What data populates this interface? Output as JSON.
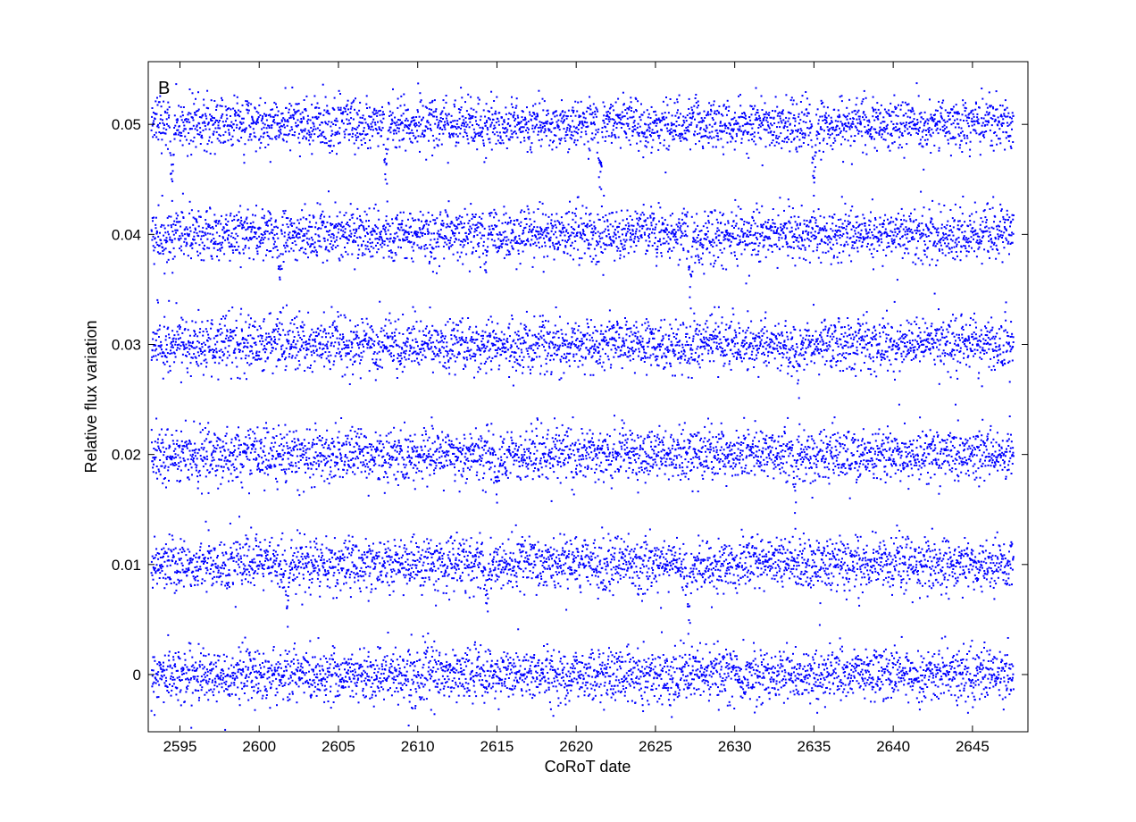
{
  "chart_data": {
    "type": "scatter",
    "title": "",
    "panel_label": "B",
    "xlabel": "CoRoT date",
    "ylabel": "Relative flux variation",
    "xlim": [
      2593,
      2648.5
    ],
    "ylim": [
      -0.0052,
      0.0557
    ],
    "xticks": [
      2595,
      2600,
      2605,
      2610,
      2615,
      2620,
      2625,
      2630,
      2635,
      2640,
      2645
    ],
    "yticks": [
      0,
      0.01,
      0.02,
      0.03,
      0.04,
      0.05
    ],
    "ytick_labels": [
      "0",
      "0.01",
      "0.02",
      "0.03",
      "0.04",
      "0.05"
    ],
    "marker": "dot",
    "marker_color": "#0000ff",
    "grid": false,
    "x_range_data": [
      2593.2,
      2647.6
    ],
    "series": [
      {
        "offset": 0,
        "noise_sigma": 0.0012,
        "transits": []
      },
      {
        "offset": 0.01,
        "noise_sigma": 0.0012,
        "transits": [
          {
            "t": 2601.8,
            "depth": 0.0035
          },
          {
            "t": 2614.4,
            "depth": 0.0035
          },
          {
            "t": 2627.1,
            "depth": 0.0045
          }
        ]
      },
      {
        "offset": 0.02,
        "noise_sigma": 0.0012,
        "transits": [
          {
            "t": 2615.0,
            "depth": 0.0035
          },
          {
            "t": 2633.8,
            "depth": 0.003
          }
        ]
      },
      {
        "offset": 0.03,
        "noise_sigma": 0.0012,
        "transits": [
          {
            "t": 2634.0,
            "depth": 0.003
          }
        ]
      },
      {
        "offset": 0.04,
        "noise_sigma": 0.0012,
        "transits": [
          {
            "t": 2601.3,
            "depth": 0.003
          },
          {
            "t": 2614.3,
            "depth": 0.003
          },
          {
            "t": 2627.2,
            "depth": 0.0045
          }
        ]
      },
      {
        "offset": 0.05,
        "noise_sigma": 0.0012,
        "transits": [
          {
            "t": 2594.5,
            "depth": 0.0055
          },
          {
            "t": 2608.0,
            "depth": 0.0055
          },
          {
            "t": 2621.5,
            "depth": 0.0055
          },
          {
            "t": 2635.0,
            "depth": 0.0055
          }
        ]
      }
    ]
  }
}
